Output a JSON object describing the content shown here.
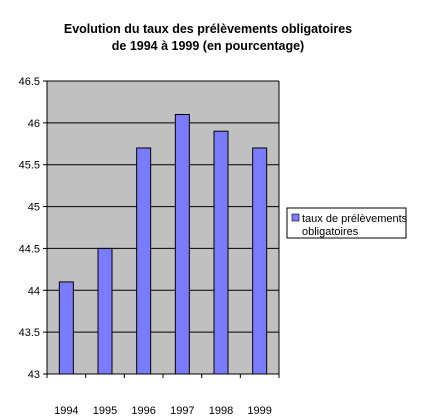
{
  "chart_data": {
    "type": "bar",
    "title": [
      "Evolution du taux des prélèvements obligatoires",
      "de 1994 à 1999 (en pourcentage)"
    ],
    "xlabel": "",
    "ylabel": "",
    "categories": [
      "1994",
      "1995",
      "1996",
      "1997",
      "1998",
      "1999"
    ],
    "series": [
      {
        "name": "taux de prélèvements obligatoires",
        "legend_lines": [
          "taux de prélèvements",
          "obligatoires"
        ],
        "values": [
          44.1,
          44.5,
          45.7,
          46.1,
          45.9,
          45.7
        ]
      }
    ],
    "ylim": [
      43,
      46.5
    ],
    "yticks": [
      "43",
      "43.5",
      "44",
      "44.5",
      "45",
      "45.5",
      "46",
      "46.5"
    ],
    "grid": true,
    "legend_position": "right",
    "colors": {
      "bar": "#7b7bff",
      "plot_bg": "#c0c0c0",
      "grid": "#000000"
    }
  }
}
